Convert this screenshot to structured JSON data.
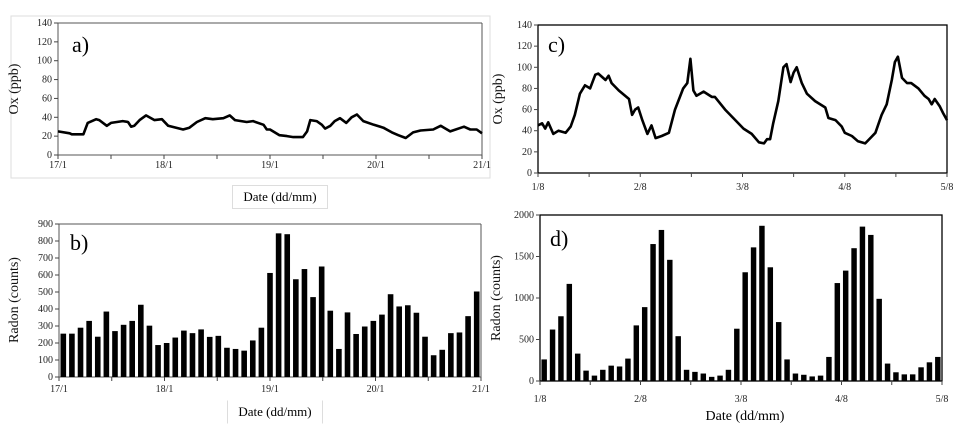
{
  "chart_data": [
    {
      "panel": "a)",
      "type": "line",
      "xlabel": "Date (dd/mm)",
      "ylabel": "Ox (ppb)",
      "ylim": [
        0,
        140
      ],
      "yticks": [
        0,
        20,
        40,
        60,
        80,
        100,
        120,
        140
      ],
      "xticks": [
        "17/1",
        "18/1",
        "19/1",
        "20/1",
        "21/1"
      ],
      "x_unit": "days since 17/1",
      "series": [
        {
          "name": "Ox",
          "x": [
            0,
            0.11,
            0.13,
            0.24,
            0.28,
            0.36,
            0.39,
            0.46,
            0.5,
            0.61,
            0.66,
            0.69,
            0.72,
            0.77,
            0.83,
            0.91,
            0.98,
            1.04,
            1.18,
            1.24,
            1.31,
            1.39,
            1.46,
            1.56,
            1.62,
            1.67,
            1.78,
            1.84,
            1.94,
            1.97,
            2.0,
            2.09,
            2.16,
            2.22,
            2.31,
            2.35,
            2.38,
            2.44,
            2.49,
            2.52,
            2.57,
            2.61,
            2.66,
            2.72,
            2.77,
            2.82,
            2.88,
            2.98,
            3.07,
            3.15,
            3.21,
            3.28,
            3.35,
            3.42,
            3.54,
            3.61,
            3.7,
            3.83,
            3.89,
            3.95,
            4.0
          ],
          "y": [
            25,
            23,
            22,
            22,
            34,
            38,
            37,
            31,
            34,
            36,
            35,
            30,
            31,
            37,
            42,
            37,
            38,
            31,
            27,
            29,
            35,
            39,
            38,
            39,
            42,
            37,
            35,
            36,
            32,
            27,
            27,
            21,
            20,
            19,
            19,
            25,
            37,
            36,
            32,
            28,
            31,
            36,
            39,
            34,
            40,
            43,
            36,
            32,
            29,
            24,
            21,
            18,
            24,
            26,
            27,
            31,
            25,
            30,
            27,
            27,
            23
          ]
        }
      ]
    },
    {
      "panel": "b)",
      "type": "bar",
      "xlabel": "Date (dd/mm)",
      "ylabel": "Radon (counts)",
      "ylim": [
        0,
        900
      ],
      "yticks": [
        0,
        100,
        200,
        300,
        400,
        500,
        600,
        700,
        800,
        900
      ],
      "xticks": [
        "17/1",
        "18/1",
        "19/1",
        "20/1",
        "21/1"
      ],
      "values": [
        255,
        255,
        290,
        330,
        237,
        385,
        270,
        307,
        330,
        425,
        302,
        188,
        200,
        232,
        273,
        258,
        280,
        236,
        242,
        172,
        165,
        155,
        215,
        290,
        612,
        845,
        840,
        575,
        635,
        470,
        650,
        390,
        165,
        380,
        253,
        297,
        330,
        367,
        487,
        415,
        422,
        378,
        237,
        128,
        160,
        258,
        262,
        358,
        503
      ]
    },
    {
      "panel": "c)",
      "type": "line",
      "xlabel": "",
      "ylabel": "Ox (ppb)",
      "ylim": [
        0,
        140
      ],
      "yticks": [
        0,
        20,
        40,
        60,
        80,
        100,
        120,
        140
      ],
      "xticks": [
        "1/8",
        "2/8",
        "3/8",
        "4/8",
        "5/8"
      ],
      "x_unit": "days since 1/8",
      "series": [
        {
          "name": "Ox",
          "x": [
            0,
            0.04,
            0.07,
            0.1,
            0.15,
            0.2,
            0.27,
            0.32,
            0.36,
            0.41,
            0.46,
            0.51,
            0.56,
            0.59,
            0.66,
            0.69,
            0.72,
            0.79,
            0.89,
            0.92,
            0.95,
            0.98,
            1.02,
            1.07,
            1.11,
            1.15,
            1.21,
            1.28,
            1.34,
            1.42,
            1.46,
            1.49,
            1.52,
            1.55,
            1.62,
            1.7,
            1.73,
            1.83,
            1.93,
            2.01,
            2.09,
            2.16,
            2.21,
            2.24,
            2.27,
            2.3,
            2.35,
            2.4,
            2.43,
            2.47,
            2.5,
            2.53,
            2.58,
            2.63,
            2.71,
            2.81,
            2.84,
            2.91,
            2.97,
            3.0,
            3.07,
            3.13,
            3.2,
            3.25,
            3.3,
            3.36,
            3.41,
            3.46,
            3.49,
            3.52,
            3.56,
            3.61,
            3.65,
            3.72,
            3.78,
            3.82,
            3.85,
            3.88,
            3.93,
            3.96,
            4.0
          ],
          "y": [
            45,
            47,
            42,
            48,
            37,
            40,
            38,
            44,
            55,
            75,
            83,
            80,
            93,
            94,
            88,
            92,
            85,
            78,
            70,
            55,
            60,
            62,
            50,
            37,
            45,
            33,
            35,
            38,
            60,
            80,
            85,
            108,
            78,
            73,
            77,
            72,
            72,
            60,
            50,
            42,
            37,
            29,
            28,
            32,
            32,
            47,
            68,
            100,
            103,
            86,
            95,
            100,
            85,
            75,
            68,
            62,
            52,
            50,
            44,
            38,
            35,
            30,
            28,
            33,
            38,
            55,
            65,
            88,
            105,
            110,
            90,
            85,
            85,
            80,
            73,
            70,
            65,
            70,
            63,
            57,
            50
          ]
        }
      ]
    },
    {
      "panel": "d)",
      "type": "bar",
      "xlabel": "Date (dd/mm)",
      "ylabel": "Radon (counts)",
      "ylim": [
        0,
        2000
      ],
      "yticks": [
        0,
        500,
        1000,
        1500,
        2000
      ],
      "xticks": [
        "1/8",
        "2/8",
        "3/8",
        "4/8",
        "5/8"
      ],
      "values": [
        260,
        620,
        780,
        1170,
        330,
        125,
        65,
        135,
        185,
        175,
        270,
        670,
        890,
        1650,
        1820,
        1460,
        540,
        135,
        110,
        90,
        50,
        65,
        135,
        630,
        1310,
        1610,
        1870,
        1370,
        710,
        260,
        90,
        75,
        55,
        65,
        290,
        1180,
        1330,
        1600,
        1860,
        1760,
        990,
        210,
        105,
        80,
        80,
        165,
        225,
        290
      ]
    }
  ]
}
